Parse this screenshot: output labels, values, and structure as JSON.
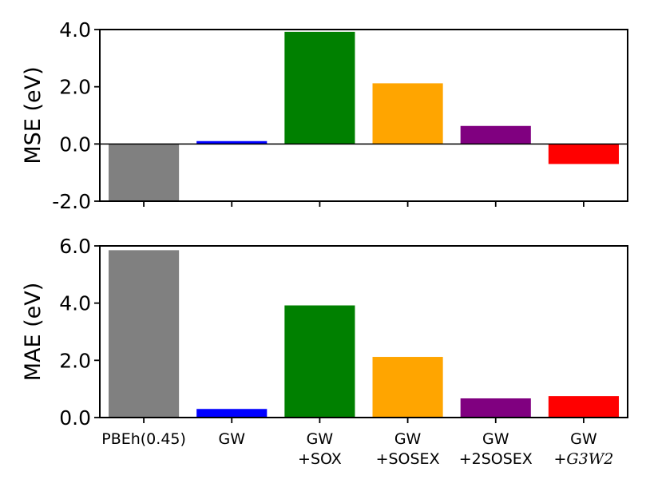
{
  "chart_data": [
    {
      "type": "bar",
      "ylabel": "MSE (eV)",
      "ylim": [
        -2.0,
        4.0
      ],
      "yticks": [
        -2.0,
        0.0,
        2.0,
        4.0
      ],
      "ytick_labels": [
        "-2.0",
        "0.0",
        "2.0",
        "4.0"
      ],
      "zero_line": true,
      "categories": [
        "PBEh(0.45)",
        "GW",
        "GW+SOX",
        "GW+SOSEX",
        "GW+2SOSEX",
        "GW+G3W2"
      ],
      "values": [
        -2.0,
        0.1,
        3.92,
        2.12,
        0.63,
        -0.7
      ],
      "colors": [
        "#808080",
        "#0000ff",
        "#008000",
        "#ffa500",
        "#800080",
        "#ff0000"
      ]
    },
    {
      "type": "bar",
      "ylabel": "MAE (eV)",
      "ylim": [
        0.0,
        6.0
      ],
      "yticks": [
        0.0,
        2.0,
        4.0,
        6.0
      ],
      "ytick_labels": [
        "0.0",
        "2.0",
        "4.0",
        "6.0"
      ],
      "categories": [
        "PBEh(0.45)",
        "GW",
        "GW+SOX",
        "GW+SOSEX",
        "GW+2SOSEX",
        "GW+G3W2"
      ],
      "values": [
        5.85,
        0.3,
        3.92,
        2.12,
        0.67,
        0.75
      ],
      "colors": [
        "#808080",
        "#0000ff",
        "#008000",
        "#ffa500",
        "#800080",
        "#ff0000"
      ]
    }
  ],
  "xtick_labels": [
    {
      "line1": "PBEh(0.45)",
      "line1_italic": false,
      "line2": "",
      "line2_italic": false
    },
    {
      "line1": "GW",
      "line1_italic": true,
      "line2": "",
      "line2_italic": false
    },
    {
      "line1": "GW",
      "line1_italic": true,
      "line2": "+SOX",
      "line2_italic": false
    },
    {
      "line1": "GW",
      "line1_italic": true,
      "line2": "+SOSEX",
      "line2_italic": false
    },
    {
      "line1": "GW",
      "line1_italic": true,
      "line2": "+2SOSEX",
      "line2_italic": false
    },
    {
      "line1": "GW",
      "line1_italic": true,
      "line2": "+G3W2",
      "line2_italic": true
    }
  ]
}
